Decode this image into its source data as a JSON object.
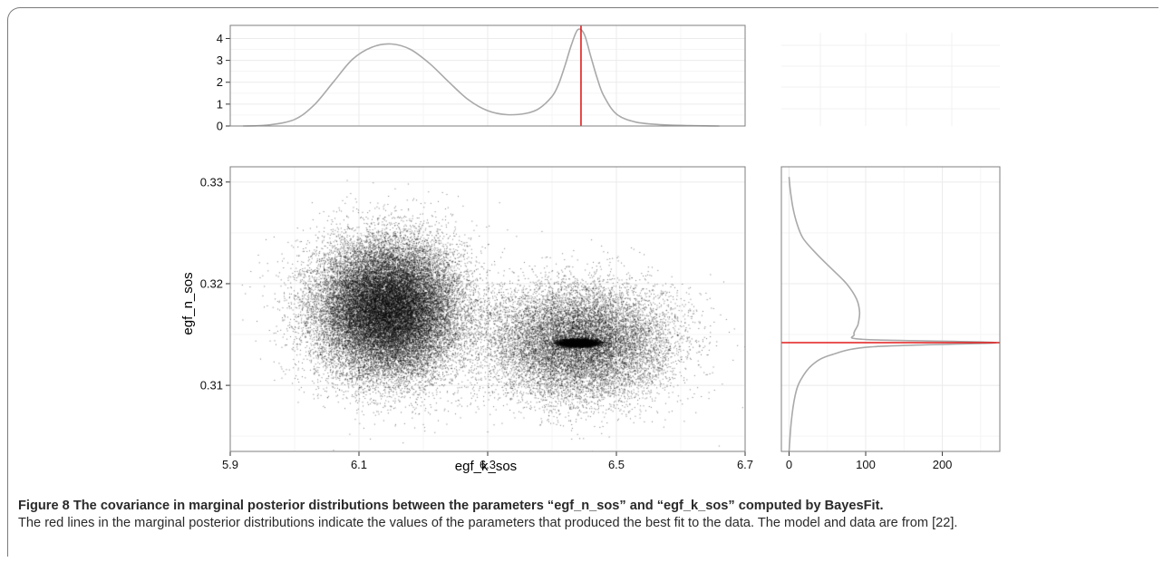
{
  "chart_data": [
    {
      "type": "area",
      "role": "top marginal posterior density of egf_k_sos",
      "x_range": [
        5.9,
        6.7
      ],
      "ylim": [
        0,
        4.6
      ],
      "yticks": [
        0,
        1,
        2,
        3,
        4
      ],
      "grid": true,
      "curve_color": "#a9a9a9",
      "x": [
        5.92,
        5.96,
        6.0,
        6.03,
        6.06,
        6.09,
        6.12,
        6.15,
        6.18,
        6.21,
        6.24,
        6.27,
        6.3,
        6.33,
        6.36,
        6.38,
        6.4,
        6.41,
        6.42,
        6.43,
        6.44,
        6.45,
        6.46,
        6.47,
        6.48,
        6.5,
        6.53,
        6.57,
        6.61,
        6.66
      ],
      "y": [
        0.0,
        0.05,
        0.3,
        0.95,
        2.0,
        3.05,
        3.6,
        3.75,
        3.5,
        2.85,
        2.0,
        1.2,
        0.7,
        0.52,
        0.58,
        0.8,
        1.35,
        1.9,
        2.75,
        3.7,
        4.4,
        4.2,
        3.2,
        2.2,
        1.4,
        0.55,
        0.18,
        0.06,
        0.02,
        0.0
      ],
      "reference_line": {
        "x": 6.445,
        "color": "#e41a1c"
      }
    },
    {
      "type": "scatter",
      "role": "joint posterior samples",
      "xlabel": "egf_k_sos",
      "ylabel": "egf_n_sos",
      "xlim": [
        5.9,
        6.7
      ],
      "xticks": [
        "5.9",
        "6.1",
        "6.3",
        "6.5",
        "6.7"
      ],
      "ylim": [
        0.3035,
        0.3315
      ],
      "yticks": [
        "0.31",
        "0.32",
        "0.33"
      ],
      "grid": true,
      "point_color": "#000000",
      "clusters": [
        {
          "mean_x": 6.145,
          "mean_y": 0.3175,
          "sd_x": 0.055,
          "sd_y": 0.0033,
          "n": 30000
        },
        {
          "mean_x": 6.44,
          "mean_y": 0.3142,
          "sd_x": 0.072,
          "sd_y": 0.0028,
          "n": 13000
        },
        {
          "mean_x": 6.44,
          "mean_y": 0.3142,
          "sd_x": 0.014,
          "sd_y": 0.00018,
          "n": 7000
        }
      ]
    },
    {
      "type": "line",
      "role": "right marginal posterior density of egf_n_sos",
      "xticks": [
        "0",
        "100",
        "200"
      ],
      "xlim": [
        -10,
        275
      ],
      "ylim": [
        0.3035,
        0.3315
      ],
      "grid": true,
      "curve_color": "#a9a9a9",
      "density": [
        0,
        2,
        5,
        10,
        18,
        35,
        55,
        75,
        88,
        92,
        90,
        85,
        100,
        270,
        110,
        55,
        30,
        15,
        8,
        3,
        0
      ],
      "y": [
        0.3305,
        0.329,
        0.3275,
        0.326,
        0.3245,
        0.323,
        0.3215,
        0.32,
        0.3185,
        0.3172,
        0.316,
        0.315,
        0.3145,
        0.3142,
        0.3138,
        0.313,
        0.312,
        0.3105,
        0.309,
        0.3065,
        0.3035
      ],
      "reference_line": {
        "y": 0.3142,
        "color": "#e41a1c"
      }
    }
  ],
  "caption": {
    "title": "Figure 8 The covariance in marginal posterior distributions between the parameters “egf_n_sos” and “egf_k_sos” computed by BayesFit.",
    "body": "The red lines in the marginal posterior distributions indicate the values of the parameters that produced the best fit to the data. The model and data are from [22]."
  }
}
